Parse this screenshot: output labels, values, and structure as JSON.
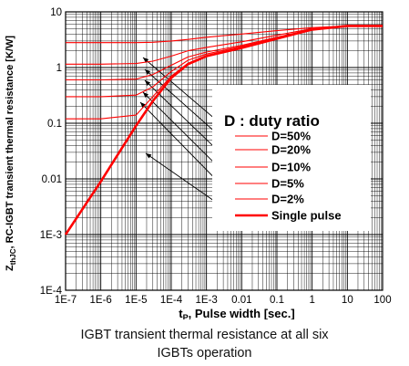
{
  "chart_data": {
    "type": "line",
    "title": "",
    "xlabel": "tP, Pulse width [sec.]",
    "xlabel_main": "t",
    "xlabel_sub": "P",
    "xlabel_rest": ", Pulse width [sec.]",
    "ylabel": "ZthJC, RC-IGBT transient thermal resistance [K/W]",
    "ylabel_main": "Z",
    "ylabel_sub": "thJC",
    "ylabel_rest": ", RC-IGBT transient thermal resistance [K/W]",
    "x_scale": "log",
    "y_scale": "log",
    "xlim": [
      1e-07,
      100
    ],
    "ylim": [
      0.0001,
      10
    ],
    "grid": true,
    "x_tick_values": [
      1e-07,
      1e-06,
      1e-05,
      0.0001,
      0.001,
      0.01,
      0.1,
      1,
      10,
      100
    ],
    "x_tick_labels": [
      "1E-7",
      "1E-6",
      "1E-5",
      "1E-4",
      "1E-3",
      "0.01",
      "0.1",
      "1",
      "10",
      "100"
    ],
    "y_tick_values": [
      0.0001,
      0.001,
      0.01,
      0.1,
      1,
      10
    ],
    "y_tick_labels": [
      "1E-4",
      "1E-3",
      "0.01",
      "0.1",
      "1",
      "10"
    ],
    "legend_title": "D : duty ratio",
    "legend_placement": "center-right",
    "series_color": "#ff0000",
    "series": [
      {
        "name": "D=50%",
        "x": [
          1e-07,
          1e-06,
          1e-05,
          3e-05,
          0.0001,
          0.0003,
          0.001,
          0.01,
          0.1,
          1,
          10,
          100
        ],
        "y": [
          2.8,
          2.8,
          2.8,
          2.85,
          3.0,
          3.2,
          3.5,
          4.0,
          4.6,
          5.2,
          5.6,
          5.6
        ]
      },
      {
        "name": "D=20%",
        "x": [
          1e-07,
          1e-06,
          1e-05,
          3e-05,
          0.0001,
          0.0003,
          0.001,
          0.01,
          0.1,
          1,
          10,
          100
        ],
        "y": [
          1.15,
          1.15,
          1.18,
          1.3,
          1.6,
          2.0,
          2.3,
          2.9,
          3.8,
          5.0,
          5.6,
          5.6
        ]
      },
      {
        "name": "D=10%",
        "x": [
          1e-07,
          1e-06,
          1e-05,
          3e-05,
          0.0001,
          0.0003,
          0.001,
          0.01,
          0.1,
          1,
          10,
          100
        ],
        "y": [
          0.6,
          0.6,
          0.62,
          0.75,
          1.1,
          1.55,
          1.9,
          2.5,
          3.5,
          4.9,
          5.6,
          5.6
        ]
      },
      {
        "name": "D=5%",
        "x": [
          1e-07,
          1e-06,
          1e-05,
          3e-05,
          0.0001,
          0.0003,
          0.001,
          0.01,
          0.1,
          1,
          10,
          100
        ],
        "y": [
          0.3,
          0.3,
          0.32,
          0.45,
          0.85,
          1.35,
          1.75,
          2.4,
          3.4,
          4.85,
          5.6,
          5.6
        ]
      },
      {
        "name": "D=2%",
        "x": [
          1e-07,
          1e-06,
          1e-05,
          3e-05,
          0.0001,
          0.0003,
          0.001,
          0.01,
          0.1,
          1,
          10,
          100
        ],
        "y": [
          0.12,
          0.12,
          0.14,
          0.3,
          0.7,
          1.2,
          1.65,
          2.3,
          3.35,
          4.8,
          5.6,
          5.6
        ]
      },
      {
        "name": "Single pulse",
        "x": [
          1e-07,
          1e-06,
          1e-05,
          3e-05,
          0.0001,
          0.0003,
          0.001,
          0.01,
          0.1,
          1,
          10,
          100
        ],
        "y": [
          0.001,
          0.009,
          0.09,
          0.25,
          0.65,
          1.15,
          1.6,
          2.25,
          3.3,
          4.8,
          5.6,
          5.6
        ]
      }
    ]
  },
  "caption": {
    "line1": "IGBT transient thermal resistance at all six",
    "line2": "IGBTs operation"
  }
}
